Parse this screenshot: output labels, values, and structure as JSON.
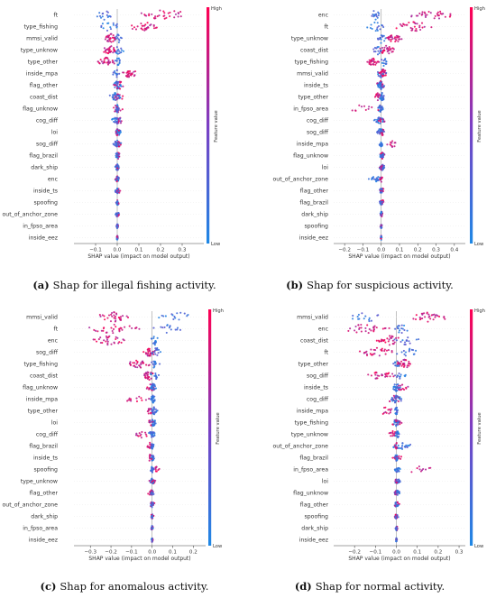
{
  "colors": {
    "low": "#1e88e5",
    "mid": "#7b3fc4",
    "high": "#ff0052",
    "zero_line": "#999999"
  },
  "chart_data": [
    {
      "type": "beeswarm",
      "caption_label": "(a)",
      "caption_text": "Shap for illegal fishing activity.",
      "xlabel": "SHAP value (impact on model output)",
      "colorbar_label": "Feature value",
      "colorbar_high": "High",
      "colorbar_low": "Low",
      "xlim": [
        -0.2,
        0.4
      ],
      "xticks": [
        -0.1,
        0.0,
        0.1,
        0.2,
        0.3
      ],
      "xtick_labels": [
        "−0.1",
        "0.0",
        "0.1",
        "0.2",
        "0.3"
      ],
      "features": [
        {
          "name": "ft",
          "low_range": [
            -0.13,
            0.0
          ],
          "high_range": [
            0.08,
            0.36
          ]
        },
        {
          "name": "type_fishing",
          "low_range": [
            -0.1,
            0.02
          ],
          "high_range": [
            0.05,
            0.2
          ]
        },
        {
          "name": "mmsi_valid",
          "low_range": [
            -0.02,
            0.03
          ],
          "high_range": [
            -0.06,
            0.0
          ]
        },
        {
          "name": "type_unknow",
          "low_range": [
            -0.02,
            0.03
          ],
          "high_range": [
            -0.07,
            0.0
          ]
        },
        {
          "name": "type_other",
          "low_range": [
            -0.01,
            0.02
          ],
          "high_range": [
            -0.1,
            0.0
          ]
        },
        {
          "name": "inside_mpa",
          "low_range": [
            -0.02,
            0.01
          ],
          "high_range": [
            0.02,
            0.1
          ]
        },
        {
          "name": "flag_other",
          "low_range": [
            -0.02,
            0.02
          ],
          "high_range": [
            -0.02,
            0.04
          ]
        },
        {
          "name": "coast_dist",
          "low_range": [
            -0.04,
            0.02
          ],
          "high_range": [
            -0.02,
            0.03
          ]
        },
        {
          "name": "flag_unknow",
          "low_range": [
            -0.01,
            0.01
          ],
          "high_range": [
            -0.03,
            0.03
          ]
        },
        {
          "name": "cog_diff",
          "low_range": [
            -0.03,
            0.02
          ],
          "high_range": [
            -0.01,
            0.03
          ]
        },
        {
          "name": "loi",
          "low_range": [
            -0.01,
            0.02
          ],
          "high_range": [
            -0.01,
            0.01
          ]
        },
        {
          "name": "sog_diff",
          "low_range": [
            -0.02,
            0.02
          ],
          "high_range": [
            -0.01,
            0.02
          ]
        },
        {
          "name": "flag_brazil",
          "low_range": [
            -0.01,
            0.01
          ],
          "high_range": [
            -0.01,
            0.02
          ]
        },
        {
          "name": "dark_ship",
          "low_range": [
            -0.01,
            0.01
          ],
          "high_range": [
            -0.01,
            0.01
          ]
        },
        {
          "name": "enc",
          "low_range": [
            -0.01,
            0.01
          ],
          "high_range": [
            -0.01,
            0.01
          ]
        },
        {
          "name": "inside_ts",
          "low_range": [
            -0.01,
            0.01
          ],
          "high_range": [
            -0.01,
            0.02
          ]
        },
        {
          "name": "spoofing",
          "low_range": [
            -0.01,
            0.01
          ],
          "high_range": [
            -0.01,
            0.01
          ]
        },
        {
          "name": "out_of_anchor_zone",
          "low_range": [
            -0.01,
            0.01
          ],
          "high_range": [
            -0.01,
            0.01
          ]
        },
        {
          "name": "in_fpso_area",
          "low_range": [
            -0.005,
            0.005
          ],
          "high_range": [
            -0.005,
            0.005
          ]
        },
        {
          "name": "inside_eez",
          "low_range": [
            -0.003,
            0.003
          ],
          "high_range": [
            -0.003,
            0.003
          ]
        }
      ]
    },
    {
      "type": "beeswarm",
      "caption_label": "(b)",
      "caption_text": "Shap for suspicious activity.",
      "xlabel": "SHAP value (impact on model output)",
      "colorbar_label": "Feature value",
      "colorbar_high": "High",
      "colorbar_low": "Low",
      "xlim": [
        -0.26,
        0.46
      ],
      "xticks": [
        -0.2,
        -0.1,
        0.0,
        0.1,
        0.2,
        0.3,
        0.4
      ],
      "xtick_labels": [
        "−0.2",
        "−0.1",
        "0.0",
        "0.1",
        "0.2",
        "0.3",
        "0.4"
      ],
      "features": [
        {
          "name": "enc",
          "low_range": [
            -0.07,
            0.0
          ],
          "high_range": [
            0.15,
            0.42
          ]
        },
        {
          "name": "ft",
          "low_range": [
            -0.08,
            0.02
          ],
          "high_range": [
            0.05,
            0.3
          ]
        },
        {
          "name": "type_unknow",
          "low_range": [
            -0.03,
            0.03
          ],
          "high_range": [
            0.02,
            0.12
          ]
        },
        {
          "name": "coast_dist",
          "low_range": [
            -0.05,
            0.01
          ],
          "high_range": [
            -0.02,
            0.08
          ]
        },
        {
          "name": "type_fishing",
          "low_range": [
            -0.01,
            0.04
          ],
          "high_range": [
            -0.08,
            0.0
          ]
        },
        {
          "name": "mmsi_valid",
          "low_range": [
            -0.03,
            0.03
          ],
          "high_range": [
            -0.02,
            0.04
          ]
        },
        {
          "name": "inside_ts",
          "low_range": [
            -0.02,
            0.02
          ],
          "high_range": [
            -0.03,
            0.02
          ]
        },
        {
          "name": "type_other",
          "low_range": [
            -0.01,
            0.02
          ],
          "high_range": [
            -0.04,
            0.0
          ]
        },
        {
          "name": "in_fpso_area",
          "low_range": [
            -0.02,
            0.01
          ],
          "high_range": [
            -0.22,
            0.02
          ]
        },
        {
          "name": "cog_diff",
          "low_range": [
            -0.04,
            0.02
          ],
          "high_range": [
            -0.02,
            0.03
          ]
        },
        {
          "name": "sog_diff",
          "low_range": [
            -0.03,
            0.02
          ],
          "high_range": [
            -0.01,
            0.02
          ]
        },
        {
          "name": "inside_mpa",
          "low_range": [
            -0.01,
            0.01
          ],
          "high_range": [
            0.02,
            0.1
          ]
        },
        {
          "name": "flag_unknow",
          "low_range": [
            -0.01,
            0.02
          ],
          "high_range": [
            -0.01,
            0.02
          ]
        },
        {
          "name": "loi",
          "low_range": [
            -0.01,
            0.02
          ],
          "high_range": [
            -0.01,
            0.01
          ]
        },
        {
          "name": "out_of_anchor_zone",
          "low_range": [
            -0.08,
            0.01
          ],
          "high_range": [
            -0.01,
            0.01
          ]
        },
        {
          "name": "flag_other",
          "low_range": [
            -0.01,
            0.01
          ],
          "high_range": [
            -0.01,
            0.02
          ]
        },
        {
          "name": "flag_brazil",
          "low_range": [
            -0.01,
            0.01
          ],
          "high_range": [
            -0.01,
            0.02
          ]
        },
        {
          "name": "dark_ship",
          "low_range": [
            -0.005,
            0.005
          ],
          "high_range": [
            -0.005,
            0.01
          ]
        },
        {
          "name": "spoofing",
          "low_range": [
            -0.005,
            0.005
          ],
          "high_range": [
            -0.005,
            0.005
          ]
        },
        {
          "name": "inside_eez",
          "low_range": [
            -0.003,
            0.003
          ],
          "high_range": [
            -0.003,
            0.003
          ]
        }
      ]
    },
    {
      "type": "beeswarm",
      "caption_label": "(c)",
      "caption_text": "Shap for anomalous activity.",
      "xlabel": "SHAP value (impact on model output)",
      "colorbar_label": "Feature value",
      "colorbar_high": "High",
      "colorbar_low": "Low",
      "xlim": [
        -0.38,
        0.26
      ],
      "xticks": [
        -0.3,
        -0.2,
        -0.1,
        0.0,
        0.1,
        0.2
      ],
      "xtick_labels": [
        "−0.3",
        "−0.2",
        "−0.1",
        "0.0",
        "0.1",
        "0.2"
      ],
      "features": [
        {
          "name": "mmsi_valid",
          "low_range": [
            0.02,
            0.23
          ],
          "high_range": [
            -0.28,
            -0.1
          ]
        },
        {
          "name": "ft",
          "low_range": [
            0.0,
            0.14
          ],
          "high_range": [
            -0.33,
            -0.05
          ]
        },
        {
          "name": "enc",
          "low_range": [
            -0.01,
            0.04
          ],
          "high_range": [
            -0.3,
            -0.12
          ]
        },
        {
          "name": "sog_diff",
          "low_range": [
            -0.02,
            0.06
          ],
          "high_range": [
            -0.05,
            0.02
          ]
        },
        {
          "name": "type_fishing",
          "low_range": [
            -0.02,
            0.04
          ],
          "high_range": [
            -0.14,
            0.0
          ]
        },
        {
          "name": "coast_dist",
          "low_range": [
            -0.02,
            0.04
          ],
          "high_range": [
            -0.05,
            0.02
          ]
        },
        {
          "name": "flag_unknow",
          "low_range": [
            -0.01,
            0.02
          ],
          "high_range": [
            -0.03,
            0.02
          ]
        },
        {
          "name": "inside_mpa",
          "low_range": [
            -0.01,
            0.02
          ],
          "high_range": [
            -0.14,
            0.0
          ]
        },
        {
          "name": "type_other",
          "low_range": [
            -0.01,
            0.03
          ],
          "high_range": [
            -0.03,
            0.01
          ]
        },
        {
          "name": "loi",
          "low_range": [
            -0.01,
            0.02
          ],
          "high_range": [
            -0.02,
            0.01
          ]
        },
        {
          "name": "cog_diff",
          "low_range": [
            -0.02,
            0.02
          ],
          "high_range": [
            -0.12,
            0.01
          ]
        },
        {
          "name": "flag_brazil",
          "low_range": [
            -0.01,
            0.01
          ],
          "high_range": [
            -0.03,
            0.01
          ]
        },
        {
          "name": "inside_ts",
          "low_range": [
            -0.01,
            0.01
          ],
          "high_range": [
            -0.03,
            0.01
          ]
        },
        {
          "name": "spoofing",
          "low_range": [
            -0.01,
            0.01
          ],
          "high_range": [
            -0.01,
            0.04
          ]
        },
        {
          "name": "type_unknow",
          "low_range": [
            -0.01,
            0.01
          ],
          "high_range": [
            -0.02,
            0.02
          ]
        },
        {
          "name": "flag_other",
          "low_range": [
            -0.01,
            0.01
          ],
          "high_range": [
            -0.02,
            0.01
          ]
        },
        {
          "name": "out_of_anchor_zone",
          "low_range": [
            -0.01,
            0.01
          ],
          "high_range": [
            -0.02,
            0.02
          ]
        },
        {
          "name": "dark_ship",
          "low_range": [
            -0.005,
            0.005
          ],
          "high_range": [
            -0.01,
            0.01
          ]
        },
        {
          "name": "in_fpso_area",
          "low_range": [
            -0.005,
            0.005
          ],
          "high_range": [
            -0.005,
            0.005
          ]
        },
        {
          "name": "inside_eez",
          "low_range": [
            -0.003,
            0.003
          ],
          "high_range": [
            -0.003,
            0.003
          ]
        }
      ]
    },
    {
      "type": "beeswarm",
      "caption_label": "(d)",
      "caption_text": "Shap for normal activity.",
      "xlabel": "SHAP value (impact on model output)",
      "colorbar_label": "Feature value",
      "colorbar_high": "High",
      "colorbar_low": "Low",
      "xlim": [
        -0.3,
        0.33
      ],
      "xticks": [
        -0.2,
        -0.1,
        0.0,
        0.1,
        0.2,
        0.3
      ],
      "xtick_labels": [
        "−0.2",
        "−0.1",
        "0.0",
        "0.1",
        "0.2",
        "0.3"
      ],
      "features": [
        {
          "name": "mmsi_valid",
          "low_range": [
            -0.22,
            -0.05
          ],
          "high_range": [
            0.05,
            0.26
          ]
        },
        {
          "name": "enc",
          "low_range": [
            -0.01,
            0.06
          ],
          "high_range": [
            -0.27,
            -0.02
          ]
        },
        {
          "name": "coast_dist",
          "low_range": [
            -0.02,
            0.12
          ],
          "high_range": [
            -0.1,
            0.04
          ]
        },
        {
          "name": "ft",
          "low_range": [
            -0.01,
            0.1
          ],
          "high_range": [
            -0.2,
            0.0
          ]
        },
        {
          "name": "type_other",
          "low_range": [
            -0.02,
            0.02
          ],
          "high_range": [
            0.0,
            0.08
          ]
        },
        {
          "name": "sog_diff",
          "low_range": [
            -0.02,
            0.06
          ],
          "high_range": [
            -0.15,
            0.0
          ]
        },
        {
          "name": "inside_ts",
          "low_range": [
            -0.02,
            0.02
          ],
          "high_range": [
            0.0,
            0.06
          ]
        },
        {
          "name": "cog_diff",
          "low_range": [
            -0.03,
            0.03
          ],
          "high_range": [
            -0.05,
            0.03
          ]
        },
        {
          "name": "inside_mpa",
          "low_range": [
            -0.01,
            0.01
          ],
          "high_range": [
            -0.1,
            0.0
          ]
        },
        {
          "name": "type_fishing",
          "low_range": [
            -0.02,
            0.02
          ],
          "high_range": [
            -0.03,
            0.04
          ]
        },
        {
          "name": "type_unknow",
          "low_range": [
            -0.01,
            0.02
          ],
          "high_range": [
            -0.04,
            0.01
          ]
        },
        {
          "name": "out_of_anchor_zone",
          "low_range": [
            -0.02,
            0.08
          ],
          "high_range": [
            -0.01,
            0.01
          ]
        },
        {
          "name": "flag_brazil",
          "low_range": [
            -0.01,
            0.01
          ],
          "high_range": [
            -0.02,
            0.03
          ]
        },
        {
          "name": "in_fpso_area",
          "low_range": [
            -0.01,
            0.02
          ],
          "high_range": [
            0.0,
            0.2
          ]
        },
        {
          "name": "loi",
          "low_range": [
            -0.01,
            0.02
          ],
          "high_range": [
            -0.01,
            0.01
          ]
        },
        {
          "name": "flag_unknow",
          "low_range": [
            -0.01,
            0.02
          ],
          "high_range": [
            -0.01,
            0.01
          ]
        },
        {
          "name": "flag_other",
          "low_range": [
            -0.01,
            0.01
          ],
          "high_range": [
            -0.01,
            0.02
          ]
        },
        {
          "name": "spoofing",
          "low_range": [
            -0.01,
            0.01
          ],
          "high_range": [
            -0.01,
            0.01
          ]
        },
        {
          "name": "dark_ship",
          "low_range": [
            -0.005,
            0.005
          ],
          "high_range": [
            -0.005,
            0.01
          ]
        },
        {
          "name": "inside_eez",
          "low_range": [
            -0.003,
            0.003
          ],
          "high_range": [
            -0.003,
            0.003
          ]
        }
      ]
    }
  ]
}
